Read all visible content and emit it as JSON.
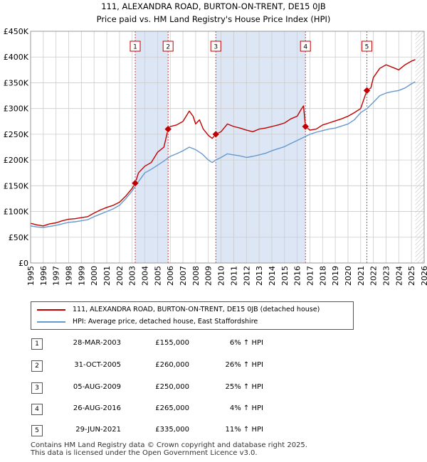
{
  "chart_data": {
    "type": "line",
    "title": "111, ALEXANDRA ROAD, BURTON-ON-TRENT, DE15 0JB",
    "subtitle": "Price paid vs. HM Land Registry's House Price Index (HPI)",
    "xlabel": "",
    "ylabel": "",
    "xlim": [
      1995,
      2026
    ],
    "ylim": [
      0,
      450000
    ],
    "y_ticks": [
      0,
      50000,
      100000,
      150000,
      200000,
      250000,
      300000,
      350000,
      400000,
      450000
    ],
    "y_tick_labels": [
      "£0",
      "£50K",
      "£100K",
      "£150K",
      "£200K",
      "£250K",
      "£300K",
      "£350K",
      "£400K",
      "£450K"
    ],
    "x_ticks": [
      1995,
      1996,
      1997,
      1998,
      1999,
      2000,
      2001,
      2002,
      2003,
      2004,
      2005,
      2006,
      2007,
      2008,
      2009,
      2010,
      2011,
      2012,
      2013,
      2014,
      2015,
      2016,
      2017,
      2018,
      2019,
      2020,
      2021,
      2022,
      2023,
      2024,
      2025,
      2026
    ],
    "grid": true,
    "data_end": 2025.3,
    "series": [
      {
        "name": "111, ALEXANDRA ROAD, BURTON-ON-TRENT, DE15 0JB (detached house)",
        "color": "#c00000",
        "x": [
          1995.0,
          1995.5,
          1996.0,
          1996.5,
          1997.0,
          1997.5,
          1998.0,
          1998.5,
          1999.0,
          1999.5,
          2000.0,
          2000.5,
          2001.0,
          2001.5,
          2002.0,
          2002.5,
          2003.0,
          2003.24,
          2003.5,
          2004.0,
          2004.5,
          2005.0,
          2005.5,
          2005.83,
          2006.0,
          2006.5,
          2007.0,
          2007.5,
          2007.8,
          2008.0,
          2008.3,
          2008.6,
          2009.0,
          2009.3,
          2009.59,
          2010.0,
          2010.5,
          2011.0,
          2011.5,
          2012.0,
          2012.5,
          2013.0,
          2013.5,
          2014.0,
          2014.5,
          2015.0,
          2015.5,
          2016.0,
          2016.3,
          2016.5,
          2016.65,
          2017.0,
          2017.5,
          2018.0,
          2018.5,
          2019.0,
          2019.5,
          2020.0,
          2020.5,
          2021.0,
          2021.49,
          2021.8,
          2022.0,
          2022.5,
          2023.0,
          2023.5,
          2024.0,
          2024.5,
          2025.0,
          2025.3
        ],
        "values": [
          77000,
          74000,
          72000,
          76000,
          78000,
          82000,
          85000,
          86000,
          88000,
          90000,
          97000,
          103000,
          108000,
          112000,
          118000,
          130000,
          145000,
          155000,
          175000,
          188000,
          195000,
          215000,
          225000,
          260000,
          265000,
          268000,
          275000,
          295000,
          285000,
          270000,
          278000,
          260000,
          248000,
          242000,
          250000,
          255000,
          270000,
          265000,
          262000,
          258000,
          255000,
          260000,
          262000,
          265000,
          268000,
          272000,
          280000,
          285000,
          298000,
          305000,
          265000,
          258000,
          260000,
          268000,
          272000,
          276000,
          280000,
          285000,
          292000,
          300000,
          335000,
          340000,
          360000,
          378000,
          385000,
          380000,
          375000,
          385000,
          392000,
          395000
        ]
      },
      {
        "name": "HPI: Average price, detached house, East Staffordshire",
        "color": "#6699cc",
        "x": [
          1995.0,
          1995.5,
          1996.0,
          1996.5,
          1997.0,
          1997.5,
          1998.0,
          1998.5,
          1999.0,
          1999.5,
          2000.0,
          2000.5,
          2001.0,
          2001.5,
          2002.0,
          2002.5,
          2003.0,
          2003.5,
          2004.0,
          2004.5,
          2005.0,
          2005.5,
          2006.0,
          2006.5,
          2007.0,
          2007.5,
          2008.0,
          2008.5,
          2009.0,
          2009.3,
          2009.6,
          2010.0,
          2010.5,
          2011.0,
          2011.5,
          2012.0,
          2012.5,
          2013.0,
          2013.5,
          2014.0,
          2014.5,
          2015.0,
          2015.5,
          2016.0,
          2016.5,
          2017.0,
          2017.5,
          2018.0,
          2018.5,
          2019.0,
          2019.5,
          2020.0,
          2020.5,
          2021.0,
          2021.5,
          2022.0,
          2022.5,
          2023.0,
          2023.5,
          2024.0,
          2024.5,
          2025.0,
          2025.3
        ],
        "values": [
          72000,
          70000,
          69000,
          71000,
          73000,
          76000,
          79000,
          80000,
          82000,
          84000,
          90000,
          95000,
          100000,
          105000,
          112000,
          125000,
          140000,
          158000,
          175000,
          182000,
          190000,
          198000,
          207000,
          212000,
          218000,
          225000,
          220000,
          212000,
          200000,
          195000,
          200000,
          205000,
          212000,
          210000,
          208000,
          205000,
          207000,
          210000,
          213000,
          218000,
          222000,
          226000,
          232000,
          238000,
          244000,
          250000,
          254000,
          257000,
          260000,
          262000,
          266000,
          270000,
          278000,
          292000,
          300000,
          312000,
          325000,
          330000,
          333000,
          335000,
          340000,
          348000,
          352000
        ]
      }
    ],
    "sale_markers": [
      {
        "label": "1",
        "x": 2003.24,
        "value": 155000
      },
      {
        "label": "2",
        "x": 2005.83,
        "value": 260000
      },
      {
        "label": "3",
        "x": 2009.59,
        "value": 250000
      },
      {
        "label": "4",
        "x": 2016.65,
        "value": 265000
      },
      {
        "label": "5",
        "x": 2021.49,
        "value": 335000
      }
    ],
    "colors": {
      "price_line": "#c00000",
      "hpi_line": "#6699cc",
      "shade": "#dde6f5",
      "grid": "#cccccc",
      "marker_line": "#d04040"
    }
  },
  "legend": {
    "price_label": "111, ALEXANDRA ROAD, BURTON-ON-TRENT, DE15 0JB (detached house)",
    "hpi_label": "HPI: Average price, detached house, East Staffordshire"
  },
  "sales": [
    {
      "num": "1",
      "date": "28-MAR-2003",
      "price": "£155,000",
      "hpi": "6% ↑ HPI"
    },
    {
      "num": "2",
      "date": "31-OCT-2005",
      "price": "£260,000",
      "hpi": "26% ↑ HPI"
    },
    {
      "num": "3",
      "date": "05-AUG-2009",
      "price": "£250,000",
      "hpi": "25% ↑ HPI"
    },
    {
      "num": "4",
      "date": "26-AUG-2016",
      "price": "£265,000",
      "hpi": "4% ↑ HPI"
    },
    {
      "num": "5",
      "date": "29-JUN-2021",
      "price": "£335,000",
      "hpi": "11% ↑ HPI"
    }
  ],
  "footer": {
    "line1": "Contains HM Land Registry data © Crown copyright and database right 2025.",
    "line2": "This data is licensed under the Open Government Licence v3.0."
  }
}
